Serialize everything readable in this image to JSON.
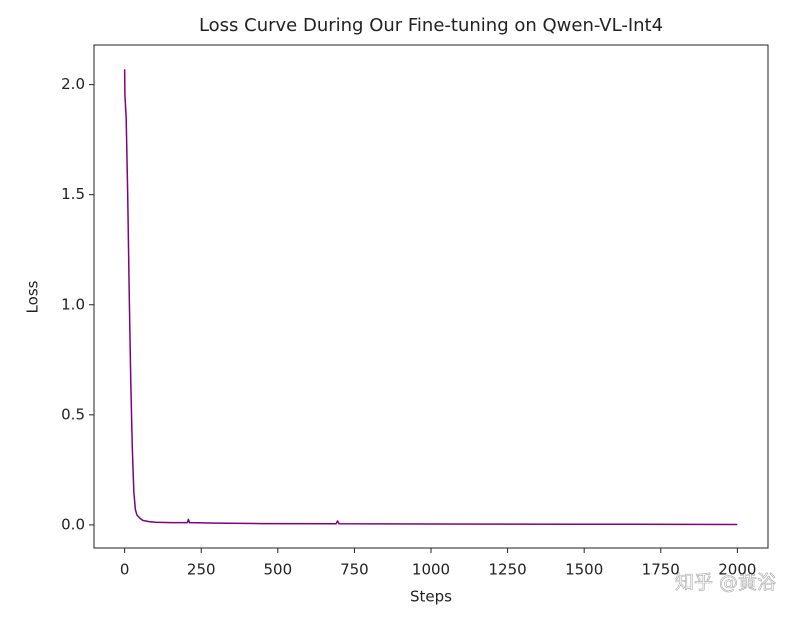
{
  "chart_data": {
    "type": "line",
    "title": "Loss Curve During Our Fine-tuning on Qwen-VL-Int4",
    "x_label": "Steps",
    "y_label": "Loss",
    "watermark": "知乎 @黄浴",
    "color": "#800080",
    "x": [
      0,
      1,
      5,
      10,
      15,
      20,
      25,
      30,
      35,
      40,
      50,
      60,
      80,
      100,
      150,
      205,
      208,
      212,
      300,
      450,
      690,
      695,
      700,
      1000,
      1500,
      2000
    ],
    "values": [
      2.07,
      1.95,
      1.85,
      1.5,
      1.05,
      0.65,
      0.35,
      0.15,
      0.07,
      0.045,
      0.03,
      0.02,
      0.015,
      0.012,
      0.01,
      0.01,
      0.025,
      0.01,
      0.008,
      0.006,
      0.005,
      0.018,
      0.005,
      0.004,
      0.003,
      0.002
    ],
    "xlim": [
      -100,
      2100
    ],
    "ylim": [
      -0.105,
      2.18
    ],
    "xticks": [
      0,
      250,
      500,
      750,
      1000,
      1250,
      1500,
      1750,
      2000
    ],
    "yticks": [
      {
        "value": 0,
        "label": "0.0"
      },
      0.5,
      {
        "value": 1,
        "label": "1.0"
      },
      1.5,
      {
        "value": 2,
        "label": "2.0"
      }
    ]
  }
}
